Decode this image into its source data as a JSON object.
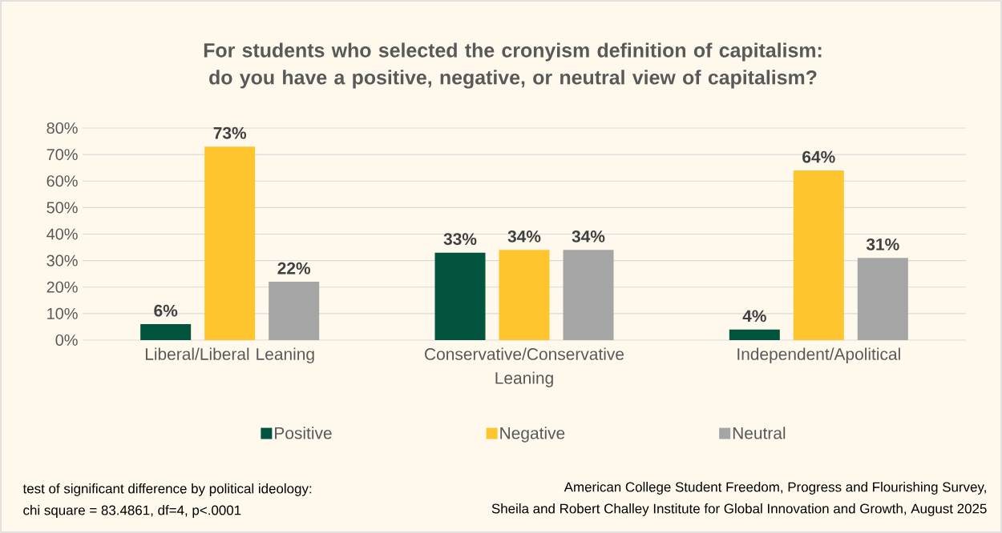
{
  "chart_data": {
    "type": "bar",
    "title": "For students who selected the cronyism definition of capitalism: do you have a positive, negative, or neutral view of capitalism?",
    "categories": [
      "Liberal/Liberal Leaning",
      "Conservative/Conservative Leaning",
      "Independent/Apolitical"
    ],
    "series": [
      {
        "name": "Positive",
        "color": "#03543f",
        "values": [
          6,
          33,
          4
        ],
        "value_labels": [
          "6%",
          "33%",
          "4%"
        ]
      },
      {
        "name": "Negative",
        "color": "#ffc52f",
        "values": [
          73,
          34,
          64
        ],
        "value_labels": [
          "73%",
          "34%",
          "64%"
        ]
      },
      {
        "name": "Neutral",
        "color": "#a5a5a5",
        "values": [
          22,
          34,
          31
        ],
        "value_labels": [
          "22%",
          "34%",
          "31%"
        ]
      }
    ],
    "ylim": [
      0,
      80
    ],
    "yticks": [
      {
        "value": 0,
        "label": "0%"
      },
      {
        "value": 10,
        "label": "10%"
      },
      {
        "value": 20,
        "label": "20%"
      },
      {
        "value": 30,
        "label": "30%"
      },
      {
        "value": 40,
        "label": "40%"
      },
      {
        "value": 50,
        "label": "50%"
      },
      {
        "value": 60,
        "label": "60%"
      },
      {
        "value": 70,
        "label": "70%"
      },
      {
        "value": 80,
        "label": "80%"
      }
    ],
    "grid": "y",
    "legend": "bottom",
    "annotations": [
      "test of significant difference by political ideology:",
      "chi square = 83.4861, df=4, p<.0001",
      "American College Student Freedom, Progress and Flourishing Survey,",
      "Sheila and Robert Challey Institute for Global Innovation and Growth, August 2025"
    ]
  }
}
